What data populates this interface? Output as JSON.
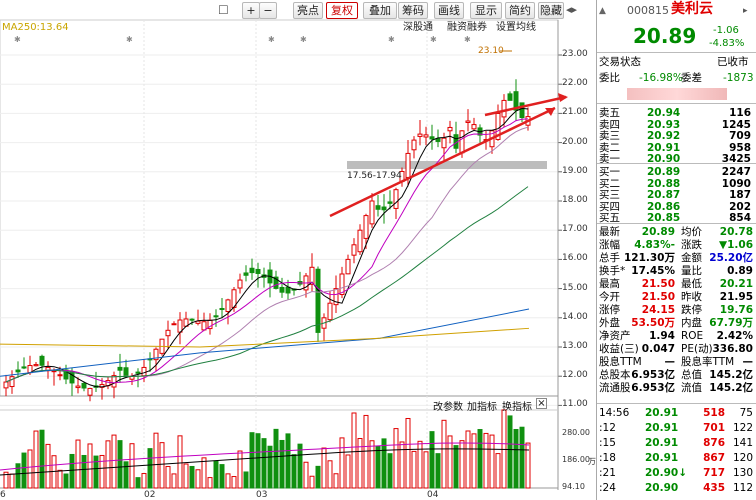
{
  "toolbar": {
    "buttons": [
      "+",
      "−",
      "亮点",
      "复权",
      "叠加",
      "筹码",
      "画线",
      "显示",
      "简约",
      "隐藏"
    ],
    "sub_buttons": [
      "深股通",
      "融资融券",
      "设置均线"
    ],
    "ma_label": "MA250:13.64",
    "annotation_high": "23.10",
    "annotation_gap": "17.56-17.94"
  },
  "price_axis": [
    "23.00",
    "22.00",
    "21.00",
    "20.00",
    "19.00",
    "18.00",
    "17.00",
    "16.00",
    "15.00",
    "14.00",
    "13.00",
    "12.00",
    "11.00"
  ],
  "volume_toolbar": [
    "改参数",
    "加指标",
    "换指标"
  ],
  "volume_axis": [
    "280.00",
    "186.00",
    "94.10",
    "万"
  ],
  "x_axis": [
    "6",
    "02",
    "03",
    "04"
  ],
  "quote": {
    "code": "000815",
    "name": "美利云",
    "price": "20.89",
    "change": "-1.06",
    "change_pct": "-4.83%",
    "trade_state_label": "交易状态",
    "trade_state": "已收市",
    "weibi_label": "委比",
    "weibi": "-16.98%",
    "weicha_label": "委差",
    "weicha": "-1873"
  },
  "asks": [
    {
      "label": "卖五",
      "price": "20.94",
      "vol": "116"
    },
    {
      "label": "卖四",
      "price": "20.93",
      "vol": "1245"
    },
    {
      "label": "卖三",
      "price": "20.92",
      "vol": "709"
    },
    {
      "label": "卖二",
      "price": "20.91",
      "vol": "958"
    },
    {
      "label": "卖一",
      "price": "20.90",
      "vol": "3425"
    }
  ],
  "bids": [
    {
      "label": "买一",
      "price": "20.89",
      "vol": "2247"
    },
    {
      "label": "买二",
      "price": "20.88",
      "vol": "1090"
    },
    {
      "label": "买三",
      "price": "20.87",
      "vol": "187"
    },
    {
      "label": "买四",
      "price": "20.86",
      "vol": "202"
    },
    {
      "label": "买五",
      "price": "20.85",
      "vol": "854"
    }
  ],
  "stats": [
    {
      "l1": "最新",
      "v1": "20.89",
      "c1": "green",
      "l2": "均价",
      "v2": "20.78",
      "c2": "green"
    },
    {
      "l1": "涨幅",
      "v1": "-4.83%",
      "c1": "green",
      "l2": "涨跌",
      "v2": "▼1.06",
      "c2": "green"
    },
    {
      "l1": "总手",
      "v1": "121.30万",
      "c1": "black",
      "l2": "金额",
      "v2": "25.20亿",
      "c2": "blue"
    },
    {
      "l1": "换手*",
      "v1": "17.45%",
      "c1": "black",
      "l2": "量比",
      "v2": "0.89",
      "c2": "black"
    },
    {
      "l1": "最高",
      "v1": "21.50",
      "c1": "red",
      "l2": "最低",
      "v2": "20.21",
      "c2": "green"
    },
    {
      "l1": "今开",
      "v1": "21.50",
      "c1": "red",
      "l2": "昨收",
      "v2": "21.95",
      "c2": "black"
    },
    {
      "l1": "涨停",
      "v1": "24.15",
      "c1": "red",
      "l2": "跌停",
      "v2": "19.76",
      "c2": "green"
    },
    {
      "l1": "外盘",
      "v1": "53.50万",
      "c1": "red",
      "l2": "内盘",
      "v2": "67.79万",
      "c2": "green"
    },
    {
      "l1": "净资产",
      "v1": "1.94",
      "c1": "black",
      "l2": "ROE",
      "v2": "2.42%",
      "c2": "black"
    },
    {
      "l1": "收益(三)",
      "v1": "0.047",
      "c1": "black",
      "l2": "PE(动)",
      "v2": "336.80",
      "c2": "black"
    },
    {
      "l1": "股息TTM",
      "v1": "—",
      "c1": "black",
      "l2": "股息率TTM",
      "v2": "—",
      "c2": "black"
    },
    {
      "l1": "总股本",
      "v1": "6.953亿",
      "c1": "black",
      "l2": "总值",
      "v2": "145.2亿",
      "c2": "black"
    },
    {
      "l1": "流通股",
      "v1": "6.953亿",
      "c1": "black",
      "l2": "流值",
      "v2": "145.2亿",
      "c2": "black"
    }
  ],
  "ticks": [
    {
      "t": "14:56",
      "p": "20.91",
      "v": "518",
      "n": "75"
    },
    {
      "t": ":12",
      "p": "20.91",
      "v": "701",
      "n": "122"
    },
    {
      "t": ":15",
      "p": "20.91",
      "v": "876",
      "n": "141"
    },
    {
      "t": ":18",
      "p": "20.91",
      "v": "867",
      "n": "120"
    },
    {
      "t": ":21",
      "p": "20.90↓",
      "v": "717",
      "n": "130"
    },
    {
      "t": ":24",
      "p": "20.90",
      "v": "435",
      "n": "112"
    }
  ]
}
